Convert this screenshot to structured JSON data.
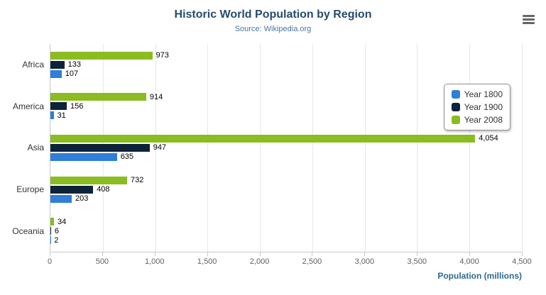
{
  "chart_data": {
    "type": "bar",
    "orientation": "horizontal",
    "title": "Historic World Population by Region",
    "subtitle": "Source: Wikipedia.org",
    "categories": [
      "Africa",
      "America",
      "Asia",
      "Europe",
      "Oceania"
    ],
    "series": [
      {
        "name": "Year 1800",
        "color": "#2f7ed8",
        "values": [
          107,
          31,
          635,
          203,
          2
        ]
      },
      {
        "name": "Year 1900",
        "color": "#0d233a",
        "values": [
          133,
          156,
          947,
          408,
          6
        ]
      },
      {
        "name": "Year 2008",
        "color": "#8bbc21",
        "values": [
          973,
          914,
          4054,
          732,
          34
        ]
      }
    ],
    "xlabel": "Population (millions)",
    "xlim": [
      0,
      4500
    ],
    "x_ticks": [
      "0",
      "500",
      "1,000",
      "1,500",
      "2,000",
      "2,500",
      "3,000",
      "3,500",
      "4,000",
      "4,500"
    ],
    "grid": true,
    "legend_position": "right",
    "data_labels": true
  },
  "colors": {
    "title": "#274b6d",
    "subtitle": "#4d759e",
    "axis_title": "#2a6b8f",
    "tick_label": "#606060",
    "category_label": "#333333",
    "gridline": "#e6e6e6"
  }
}
